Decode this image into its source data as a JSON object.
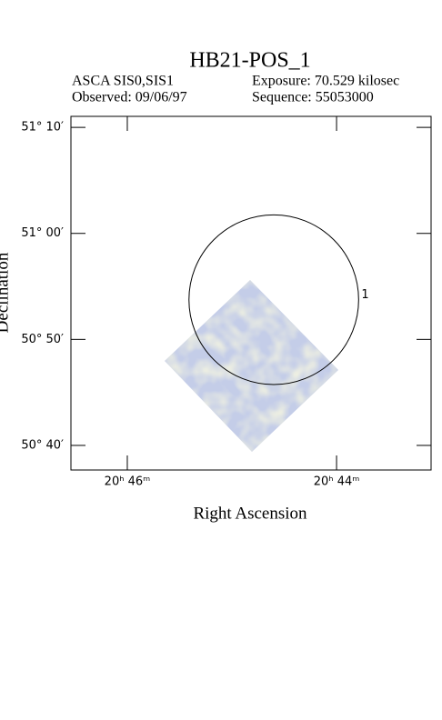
{
  "chart_data": {
    "type": "skyimage",
    "title": "HB21-POS_1",
    "info": [
      "ASCA SIS0,SIS1",
      "Exposure: 70.529 kilosec",
      "Observed: 09/06/97",
      "Sequence: 55053000"
    ],
    "x_label": "Right Ascension",
    "y_label": "Declination",
    "xlim": [
      20.77565,
      20.71827
    ],
    "ylim": [
      50.628,
      51.184
    ],
    "xticks": [
      {
        "value": 20.76667,
        "label": "20ʰ 46ᵐ"
      },
      {
        "value": 20.73333,
        "label": "20ʰ 44ᵐ"
      }
    ],
    "yticks": [
      {
        "value": 51.16667,
        "label": "51° 10′"
      },
      {
        "value": 51.0,
        "label": "51° 00′"
      },
      {
        "value": 50.83333,
        "label": "50° 50′"
      },
      {
        "value": 50.66667,
        "label": "50° 40′"
      }
    ],
    "regions": [
      {
        "label": "1",
        "ra": 20.74333,
        "dec": 50.8957,
        "radius_arcmin": 8
      }
    ]
  }
}
